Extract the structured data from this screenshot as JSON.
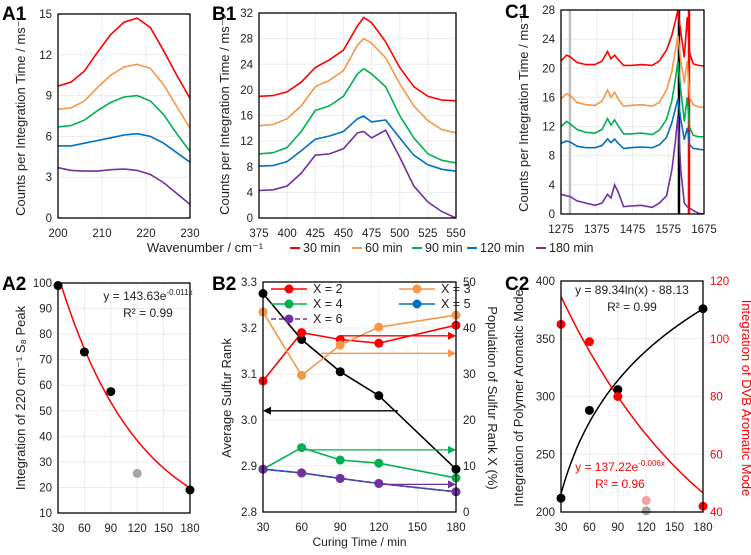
{
  "figure": {
    "panel_labels": [
      "A1",
      "B1",
      "C1",
      "A2",
      "B2",
      "C2"
    ],
    "shared_xlabel_top": "Wavenumber / cm⁻¹",
    "legend_top": [
      {
        "name": "30 min",
        "color": "#ff0000"
      },
      {
        "name": "60 min",
        "color": "#f79646"
      },
      {
        "name": "90 min",
        "color": "#00b050"
      },
      {
        "name": "120 min",
        "color": "#0070c0"
      },
      {
        "name": "180 min",
        "color": "#7030a0"
      }
    ]
  },
  "chart_data": [
    {
      "panel": "A1",
      "type": "line",
      "ylabel": "Counts per Integration Time / ms⁻¹",
      "xlim": [
        200,
        230
      ],
      "ylim": [
        0,
        15
      ],
      "xticks": [
        "200",
        "210",
        "220",
        "230"
      ],
      "yticks": [
        "0",
        "3",
        "6",
        "9",
        "12",
        "15"
      ],
      "grid": true,
      "x": [
        200,
        203,
        206,
        209,
        212,
        215,
        218,
        221,
        224,
        227,
        230
      ],
      "series": [
        {
          "name": "30 min",
          "color": "#ff0000",
          "values": [
            9.7,
            10,
            10.8,
            12.2,
            13.5,
            14.4,
            14.7,
            14,
            12.3,
            10.5,
            8.8
          ]
        },
        {
          "name": "60 min",
          "color": "#f79646",
          "values": [
            8.0,
            8.1,
            8.6,
            9.6,
            10.5,
            11.1,
            11.3,
            11.0,
            9.8,
            8.2,
            6.6
          ]
        },
        {
          "name": "90 min",
          "color": "#00b050",
          "values": [
            6.7,
            6.8,
            7.2,
            7.9,
            8.5,
            8.9,
            9.0,
            8.6,
            7.6,
            6.2,
            4.9
          ]
        },
        {
          "name": "120 min",
          "color": "#0070c0",
          "values": [
            5.3,
            5.3,
            5.5,
            5.7,
            5.9,
            6.1,
            6.2,
            6.0,
            5.5,
            4.8,
            4.1
          ]
        },
        {
          "name": "180 min",
          "color": "#7030a0",
          "values": [
            3.7,
            3.5,
            3.45,
            3.45,
            3.55,
            3.6,
            3.5,
            3.2,
            2.6,
            1.8,
            1.0
          ]
        }
      ]
    },
    {
      "panel": "B1",
      "type": "line",
      "ylabel": "Counts per Integration Time / ms⁻¹",
      "xlim": [
        375,
        550
      ],
      "ylim": [
        0,
        32
      ],
      "xticks": [
        "375",
        "400",
        "425",
        "450",
        "475",
        "500",
        "525",
        "550"
      ],
      "yticks": [
        "0",
        "4",
        "8",
        "12",
        "16",
        "20",
        "24",
        "28",
        "32"
      ],
      "grid": true,
      "x": [
        375,
        387.5,
        400,
        412.5,
        425,
        437.5,
        450,
        462.5,
        468,
        475,
        487.5,
        500,
        512.5,
        525,
        537.5,
        550
      ],
      "series": [
        {
          "name": "30 min",
          "color": "#ff0000",
          "values": [
            19,
            19.1,
            19.7,
            21.2,
            23.5,
            24.7,
            26.2,
            30,
            31.3,
            30.5,
            27.5,
            23.5,
            20.5,
            19,
            18.4,
            18.3
          ]
        },
        {
          "name": "60 min",
          "color": "#f79646",
          "values": [
            14.4,
            14.6,
            15.5,
            17.5,
            20.5,
            21.5,
            23,
            27,
            28,
            27.3,
            25,
            21,
            17.5,
            15.2,
            13.8,
            13.3
          ]
        },
        {
          "name": "90 min",
          "color": "#00b050",
          "values": [
            10,
            10.2,
            11,
            13.5,
            16.8,
            17.5,
            19,
            22.5,
            23.3,
            22.5,
            20.5,
            16,
            12.5,
            10,
            9,
            8.6
          ]
        },
        {
          "name": "120 min",
          "color": "#0070c0",
          "values": [
            8.1,
            8.2,
            8.8,
            10.5,
            12.3,
            12.8,
            13.5,
            15.5,
            15.9,
            15,
            15.3,
            12.5,
            9.8,
            8.3,
            7.6,
            7.3
          ]
        },
        {
          "name": "180 min",
          "color": "#7030a0",
          "values": [
            4.3,
            4.4,
            5,
            7,
            9.8,
            10,
            10.8,
            13.3,
            13.5,
            12.5,
            13.7,
            9.5,
            5,
            2.5,
            1,
            0
          ]
        }
      ]
    },
    {
      "panel": "C1",
      "type": "line",
      "ylabel": "Counts per Integration Time / ms⁻¹",
      "xlim": [
        1275,
        1675
      ],
      "ylim": [
        0,
        28
      ],
      "xticks": [
        "1275",
        "1375",
        "1475",
        "1575",
        "1675"
      ],
      "yticks": [
        "0",
        "4",
        "8",
        "12",
        "16",
        "20",
        "24",
        "28"
      ],
      "grid": true,
      "x": [
        1275,
        1290,
        1300,
        1320,
        1345,
        1370,
        1390,
        1405,
        1415,
        1425,
        1435,
        1450,
        1470,
        1500,
        1530,
        1550,
        1570,
        1585,
        1595,
        1602,
        1610,
        1620,
        1628,
        1635,
        1645,
        1660,
        1675
      ],
      "series": [
        {
          "name": "30 min",
          "color": "#ff0000",
          "values": [
            21,
            21.8,
            21.6,
            20.8,
            20.5,
            20.5,
            21,
            22.3,
            21.3,
            21.8,
            21.2,
            20.4,
            20.4,
            20.5,
            20.4,
            21,
            22.5,
            24.5,
            26.5,
            28,
            25,
            21.5,
            27,
            22,
            20.6,
            20.4,
            20.3
          ]
        },
        {
          "name": "60 min",
          "color": "#f79646",
          "values": [
            15.8,
            16.5,
            16.3,
            15.3,
            15,
            14.9,
            15.5,
            17,
            16,
            16.7,
            15.8,
            14.8,
            14.9,
            15,
            14.8,
            15.3,
            17,
            19.5,
            22.5,
            24.5,
            21,
            18,
            21,
            16,
            15,
            14.7,
            14.6
          ]
        },
        {
          "name": "90 min",
          "color": "#00b050",
          "values": [
            12,
            12.7,
            12.4,
            11.6,
            11.2,
            11.1,
            11.6,
            13.1,
            12.2,
            12.9,
            12.1,
            11,
            11,
            11.1,
            10.9,
            11.5,
            13,
            15.5,
            18.5,
            21,
            17,
            12.7,
            16,
            11.8,
            10.8,
            10.6,
            10.6
          ]
        },
        {
          "name": "120 min",
          "color": "#0070c0",
          "values": [
            9.7,
            10,
            9.9,
            9.3,
            9.1,
            9.1,
            9.4,
            10.3,
            9.8,
            10.3,
            9.7,
            9,
            9.1,
            9.2,
            9.1,
            9.5,
            10.5,
            12.5,
            14.5,
            15.8,
            13,
            10.2,
            11.8,
            9.5,
            9,
            8.9,
            8.8
          ]
        },
        {
          "name": "180 min",
          "color": "#7030a0",
          "values": [
            2.7,
            2.5,
            2.4,
            1.8,
            1.5,
            1.2,
            1.5,
            2.7,
            2.2,
            4,
            3,
            1,
            1.1,
            1.2,
            0.9,
            1.5,
            2.5,
            6,
            10,
            13.5,
            6,
            1.5,
            1,
            0.8,
            0.5,
            0.1,
            0
          ]
        }
      ],
      "vlines": [
        {
          "x": 1300,
          "color": "#bfbfbf"
        },
        {
          "x": 1605,
          "color": "#000000"
        },
        {
          "x": 1633,
          "color": "#ff0000"
        }
      ]
    },
    {
      "panel": "A2",
      "type": "scatter",
      "ylabel": "Integration of 220 cm⁻¹ S₈ Peak",
      "xlim": [
        30,
        180
      ],
      "ylim": [
        10,
        100
      ],
      "xticks": [
        "30",
        "60",
        "90",
        "120",
        "150",
        "180"
      ],
      "yticks": [
        "10",
        "20",
        "30",
        "40",
        "50",
        "60",
        "70",
        "80",
        "90",
        "100"
      ],
      "grid": true,
      "points": [
        {
          "x": 30,
          "y": 99,
          "color": "#000000"
        },
        {
          "x": 60,
          "y": 73,
          "color": "#000000"
        },
        {
          "x": 90,
          "y": 57.5,
          "color": "#000000"
        },
        {
          "x": 120,
          "y": 25.5,
          "color": "#a6a6a6"
        },
        {
          "x": 180,
          "y": 19,
          "color": "#000000"
        }
      ],
      "fit": {
        "kind": "exp",
        "a": 143.63,
        "b": -0.011,
        "color": "#ff0000",
        "eq_main": "y = 143.63e",
        "eq_exp": "-0.011x",
        "r2": "R² = 0.99"
      }
    },
    {
      "panel": "B2",
      "type": "line",
      "xlabel": "Curing Time / min",
      "ylabel": "Average Sulfur Rank",
      "y2label": "Population of Sulfur Rank X (%)",
      "xlim": [
        30,
        180
      ],
      "ylim": [
        2.8,
        3.3
      ],
      "y2lim": [
        0,
        50
      ],
      "xticks": [
        "30",
        "60",
        "90",
        "120",
        "150",
        "180"
      ],
      "yticks": [
        "2.8",
        "2.9",
        "3.0",
        "3.1",
        "3.2",
        "3.3"
      ],
      "y2ticks": [
        "0",
        "10",
        "20",
        "30",
        "40",
        "50"
      ],
      "grid": true,
      "x": [
        30,
        60,
        90,
        120,
        180
      ],
      "series": [
        {
          "name": "",
          "axis": "left",
          "color": "#000000",
          "values": [
            3.275,
            3.175,
            3.105,
            3.053,
            2.893
          ]
        },
        {
          "name": "X = 2",
          "axis": "right",
          "color": "#ff0000",
          "values": [
            28.5,
            39,
            37.5,
            36.7,
            40.6
          ]
        },
        {
          "name": "X = 3",
          "axis": "right",
          "color": "#f79646",
          "values": [
            43.5,
            29.7,
            36.3,
            40.2,
            42.8
          ]
        },
        {
          "name": "X = 4",
          "axis": "right",
          "color": "#00b050",
          "values": [
            9.3,
            14,
            11.3,
            10.6,
            7.4
          ]
        },
        {
          "name": "X = 5",
          "axis": "right",
          "color": "#0070c0",
          "values": [
            9.3,
            8.5,
            7.3,
            6.2,
            4.4
          ]
        },
        {
          "name": "X = 6",
          "axis": "right",
          "color": "#7030a0",
          "dashed": true,
          "values": [
            9.3,
            8.5,
            7.3,
            6.2,
            4.4
          ]
        }
      ],
      "arrows": [
        {
          "axis": "left",
          "y": 3.02,
          "from": 135,
          "to": 30,
          "color": "#000000"
        },
        {
          "axis": "right",
          "y": 38.3,
          "from": 90,
          "to": 180,
          "color": "#ff0000"
        },
        {
          "axis": "right",
          "y": 34.5,
          "from": 75,
          "to": 180,
          "color": "#f79646"
        },
        {
          "axis": "right",
          "y": 13.5,
          "from": 60,
          "to": 180,
          "color": "#00b050"
        },
        {
          "axis": "right",
          "y": 6.0,
          "from": 120,
          "to": 180,
          "color": "#7030a0"
        }
      ],
      "legend": [
        "X = 2",
        "X = 4",
        "X = 6",
        "X = 3",
        "X = 5"
      ]
    },
    {
      "panel": "C2",
      "type": "scatter",
      "ylabel": "Integration of Polymer Aromatic Mode",
      "y2label": "Integration of DVB Aromatic Mode",
      "y2color": "#ff0000",
      "xlim": [
        30,
        180
      ],
      "ylim": [
        200,
        400
      ],
      "y2lim": [
        40,
        120
      ],
      "xticks": [
        "30",
        "60",
        "90",
        "120",
        "150",
        "180"
      ],
      "yticks": [
        "200",
        "250",
        "300",
        "350",
        "400"
      ],
      "y2ticks": [
        "40",
        "60",
        "80",
        "100",
        "120"
      ],
      "grid": true,
      "points": [
        {
          "x": 30,
          "y": 212,
          "axis": "left",
          "color": "#000000"
        },
        {
          "x": 60,
          "y": 288,
          "axis": "left",
          "color": "#000000"
        },
        {
          "x": 90,
          "y": 306,
          "axis": "left",
          "color": "#000000"
        },
        {
          "x": 120,
          "y": 201,
          "axis": "left",
          "color": "#a6a6a6"
        },
        {
          "x": 180,
          "y": 376,
          "axis": "left",
          "color": "#000000"
        },
        {
          "x": 30,
          "y": 105,
          "axis": "right",
          "color": "#ff0000"
        },
        {
          "x": 60,
          "y": 99,
          "axis": "right",
          "color": "#ff0000"
        },
        {
          "x": 90,
          "y": 80,
          "axis": "right",
          "color": "#ff0000"
        },
        {
          "x": 120,
          "y": 44,
          "axis": "right",
          "color": "#f4a0a0"
        },
        {
          "x": 180,
          "y": 42,
          "axis": "right",
          "color": "#ff0000"
        }
      ],
      "fits": [
        {
          "kind": "log",
          "axis": "left",
          "a": 89.34,
          "b": -88.13,
          "color": "#000000",
          "eq_main": "y = 89.34ln(x) - 88.13",
          "eq_exp": "",
          "r2": "R² = 0.99"
        },
        {
          "kind": "exp",
          "axis": "right",
          "a": 137.22,
          "b": -0.006,
          "color": "#ff0000",
          "eq_main": "y = 137.22e",
          "eq_exp": "-0.006x",
          "r2": "R² = 0.96"
        }
      ]
    }
  ]
}
